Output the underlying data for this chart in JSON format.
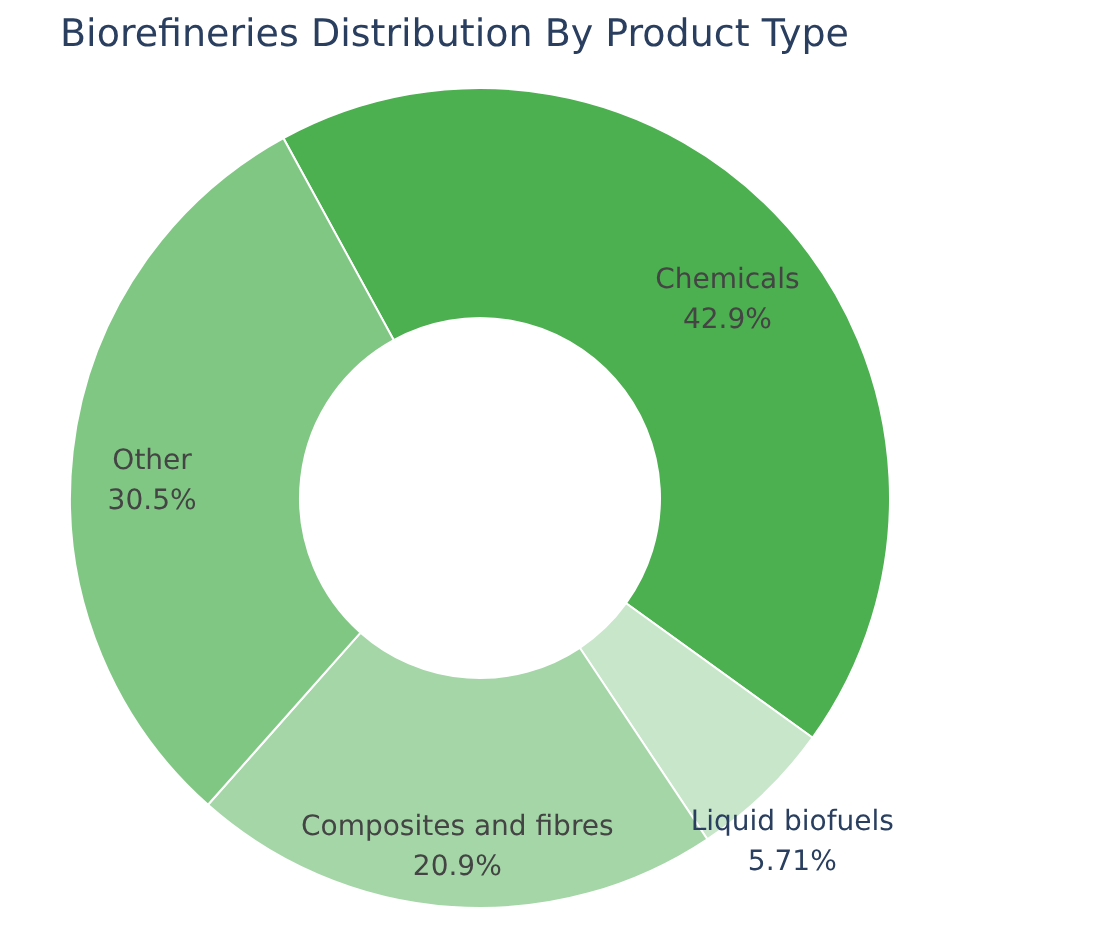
{
  "chart_data": {
    "type": "donut",
    "title": "Biorefineries Distribution By Product Type",
    "categories": [
      "Chemicals",
      "Liquid biofuels",
      "Composites and fibres",
      "Other"
    ],
    "values": [
      42.9,
      5.71,
      20.9,
      30.5
    ],
    "value_labels": [
      "42.9%",
      "5.71%",
      "20.9%",
      "30.5%"
    ],
    "colors": [
      "#4caf50",
      "#c8e6c9",
      "#a5d6a7",
      "#81c784"
    ],
    "legend": false
  }
}
